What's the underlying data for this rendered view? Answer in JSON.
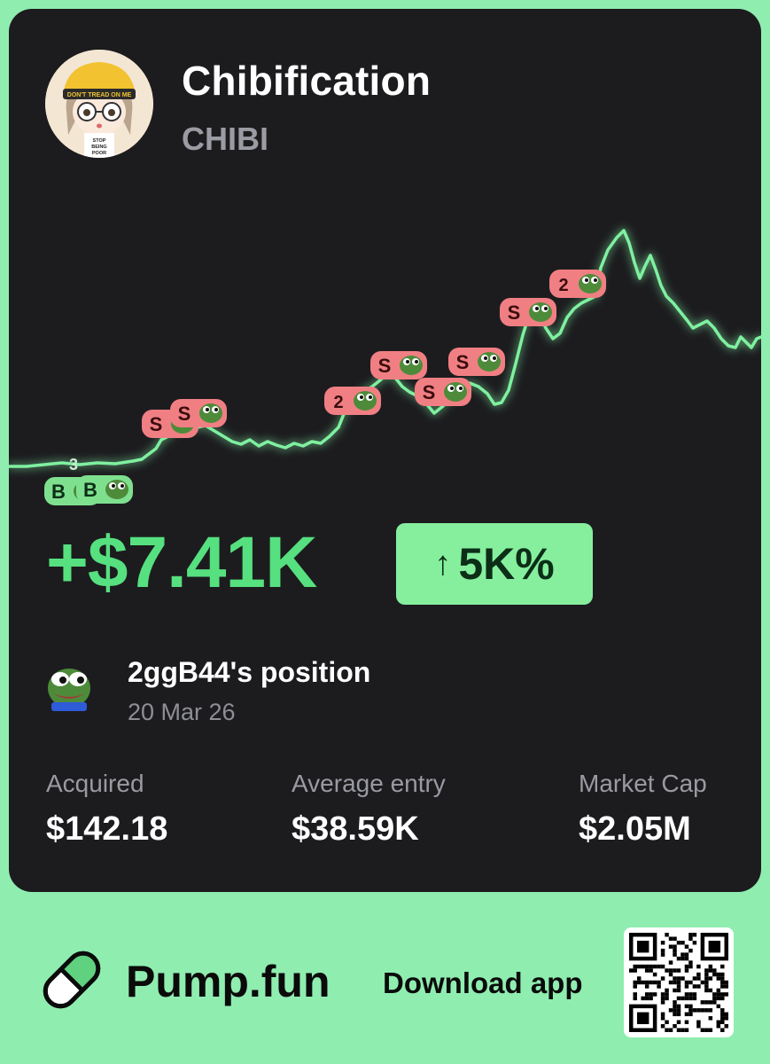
{
  "token": {
    "name": "Chibification",
    "symbol": "CHIBI"
  },
  "avatar": {
    "cap_text": "DON'T TREAD ON ME",
    "shirt_text": [
      "STOP",
      "BEING",
      "POOR"
    ]
  },
  "chart": {
    "line_color": "#7ff0a0",
    "buy_color": "#7ee08f",
    "sell_color": "#f07f83",
    "markers": [
      {
        "type": "buy",
        "label": "B",
        "count": ""
      },
      {
        "type": "buy",
        "label": "B",
        "count": "3"
      },
      {
        "type": "sell",
        "label": "S",
        "count": ""
      },
      {
        "type": "sell",
        "label": "S",
        "count": ""
      },
      {
        "type": "sell",
        "label": "",
        "count": "2"
      },
      {
        "type": "sell",
        "label": "S",
        "count": ""
      },
      {
        "type": "sell",
        "label": "S",
        "count": ""
      },
      {
        "type": "sell",
        "label": "S",
        "count": ""
      },
      {
        "type": "sell",
        "label": "S",
        "count": ""
      },
      {
        "type": "sell",
        "label": "",
        "count": "2"
      }
    ]
  },
  "pnl": {
    "value": "+$7.41K",
    "change_arrow": "↑",
    "change": "5K%"
  },
  "position": {
    "title": "2ggB44's position",
    "date": "20 Mar 26"
  },
  "stats": [
    {
      "label": "Acquired",
      "value": "$142.18"
    },
    {
      "label": "Average entry",
      "value": "$38.59K"
    },
    {
      "label": "Market Cap",
      "value": "$2.05M"
    }
  ],
  "footer": {
    "brand": "Pump.fun",
    "download": "Download app"
  }
}
